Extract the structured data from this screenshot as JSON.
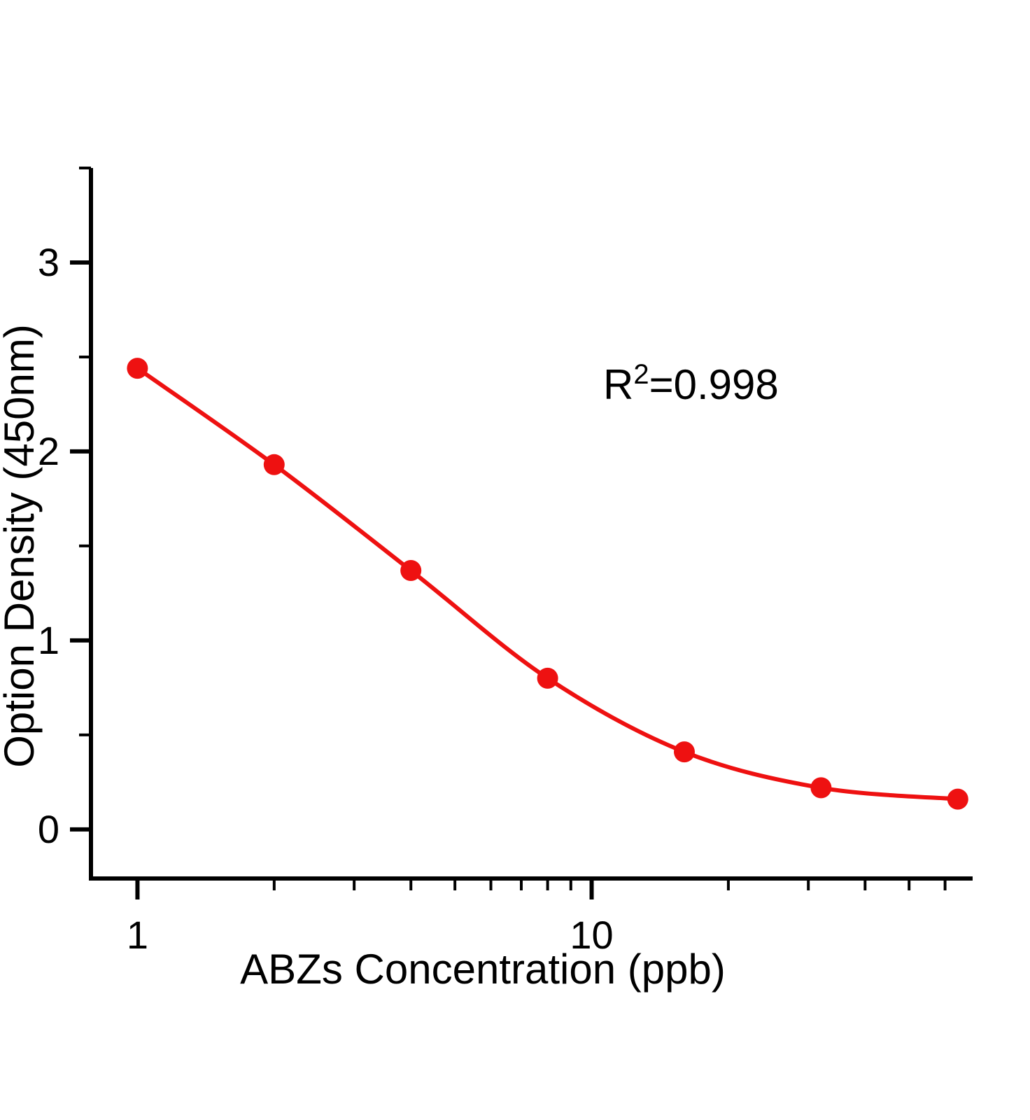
{
  "chart_data": {
    "type": "scatter",
    "title": "",
    "xlabel": "ABZs Concentration (ppb)",
    "ylabel": "Option Density (450nm)",
    "x_scale": "log10",
    "x": [
      1,
      2,
      4,
      8,
      16,
      32,
      64
    ],
    "y": [
      2.44,
      1.93,
      1.37,
      0.8,
      0.41,
      0.22,
      0.16
    ],
    "xlim": [
      0.79,
      69
    ],
    "ylim": [
      -0.26,
      3.5
    ],
    "x_ticks_major": [
      1,
      10
    ],
    "x_tick_labels": [
      "1",
      "10"
    ],
    "x_ticks_minor": [
      2,
      3,
      4,
      5,
      6,
      7,
      8,
      9,
      20,
      30,
      40,
      50,
      60
    ],
    "y_ticks_major": [
      0,
      1,
      2,
      3
    ],
    "y_tick_labels": [
      "0",
      "1",
      "2",
      "3"
    ],
    "y_ticks_minor": [
      0.5,
      1.5,
      2.5,
      3.5
    ],
    "grid": "off",
    "legend": null,
    "annotation": {
      "prefix": "R",
      "superscript": "2",
      "suffix": "=0.998"
    },
    "series_name": "standard-curve",
    "marker": "circle",
    "fit": "smooth sigmoidal curve through points",
    "colors": {
      "series": "#ee1111",
      "axis": "#000000",
      "text": "#000000",
      "background": "#ffffff"
    }
  }
}
